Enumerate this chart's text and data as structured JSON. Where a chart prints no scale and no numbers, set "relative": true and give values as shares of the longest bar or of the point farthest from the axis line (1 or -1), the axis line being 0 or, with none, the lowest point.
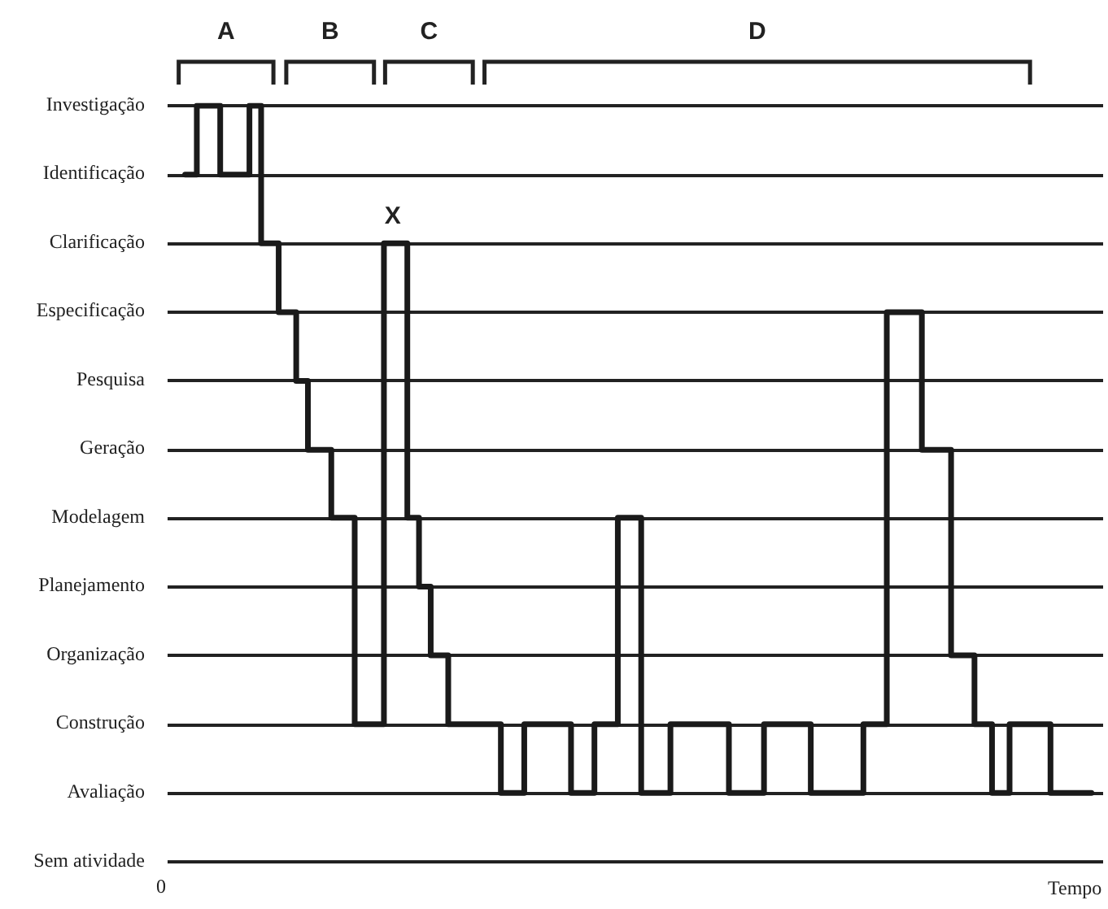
{
  "chart_data": {
    "type": "step",
    "relative": true,
    "xlabel": "Tempo",
    "categories": [
      null,
      null,
      null,
      null,
      null,
      null,
      null,
      null,
      null,
      null,
      null,
      null,
      null,
      null,
      null,
      null,
      null,
      null,
      null,
      null,
      null,
      null,
      null,
      null,
      null,
      null,
      null,
      null,
      null,
      null,
      null,
      null,
      null,
      null,
      null,
      null,
      null,
      null,
      null,
      null,
      null,
      null,
      null,
      null,
      null,
      null,
      null,
      null,
      null,
      null,
      null,
      null,
      null,
      null,
      null,
      null,
      null,
      null,
      null,
      null,
      null,
      null,
      null,
      null,
      null,
      null,
      null,
      null,
      null,
      null,
      null,
      null,
      null,
      null,
      null,
      null,
      null,
      null,
      null,
      null,
      null,
      null,
      null,
      null,
      null,
      null,
      null,
      null,
      null,
      null,
      null,
      null,
      null,
      null,
      null,
      null,
      null,
      null,
      null,
      null,
      null,
      null,
      null,
      null,
      null,
      null,
      null,
      null,
      null,
      null,
      null,
      null,
      null,
      null,
      null,
      null,
      null,
      null,
      null,
      null,
      null,
      null,
      null,
      null,
      null,
      null,
      null,
      null,
      null,
      null,
      null,
      null,
      null,
      null,
      null,
      null,
      null,
      null,
      null,
      null,
      null,
      null,
      null,
      null,
      null,
      null,
      null,
      null,
      null,
      null,
      null,
      null,
      null,
      null,
      null,
      null,
      null,
      null,
      null,
      null,
      null
    ],
    "values": [
      null,
      null,
      null,
      0.909,
      0.909,
      1,
      1,
      1,
      1,
      0.909,
      0.909,
      0.909,
      0.909,
      0.909,
      1,
      1,
      0.818,
      0.818,
      0.818,
      0.727,
      0.727,
      0.727,
      0.636,
      0.636,
      0.545,
      0.545,
      0.545,
      0.545,
      0.455,
      0.455,
      0.455,
      0.455,
      0.182,
      0.182,
      0.182,
      0.182,
      0.182,
      0.818,
      0.818,
      0.818,
      0.818,
      0.455,
      0.455,
      0.364,
      0.364,
      0.273,
      0.273,
      0.273,
      0.182,
      0.182,
      0.182,
      0.182,
      0.182,
      0.182,
      0.182,
      0.182,
      0.182,
      0.091,
      0.091,
      0.091,
      0.091,
      0.182,
      0.182,
      0.182,
      0.182,
      0.182,
      0.182,
      0.182,
      0.182,
      0.091,
      0.091,
      0.091,
      0.091,
      0.182,
      0.182,
      0.182,
      0.182,
      0.455,
      0.455,
      0.455,
      0.455,
      0.091,
      0.091,
      0.091,
      0.091,
      0.091,
      0.182,
      0.182,
      0.182,
      0.182,
      0.182,
      0.182,
      0.182,
      0.182,
      0.182,
      0.182,
      0.091,
      0.091,
      0.091,
      0.091,
      0.091,
      0.091,
      0.182,
      0.182,
      0.182,
      0.182,
      0.182,
      0.182,
      0.182,
      0.182,
      0.091,
      0.091,
      0.091,
      0.091,
      0.091,
      0.091,
      0.091,
      0.091,
      0.091,
      0.182,
      0.182,
      0.182,
      0.182,
      0.727,
      0.727,
      0.727,
      0.727,
      0.727,
      0.727,
      0.545,
      0.545,
      0.545,
      0.545,
      0.545,
      0.273,
      0.273,
      0.273,
      0.273,
      0.182,
      0.182,
      0.182,
      0.091,
      0.091,
      0.091,
      0.182,
      0.182,
      0.182,
      0.182,
      0.182,
      0.182,
      0.182,
      0.091,
      0.091,
      0.091,
      0.091,
      0.091,
      0.091,
      0.091,
      null,
      null,
      null
    ],
    "color": "#1a1a1a",
    "grid": "y",
    "marker": "none",
    "line_style": "solid",
    "annotations": [
      "A",
      "B",
      "C",
      "D",
      "X",
      "0",
      "Sem atividade",
      "Avaliação",
      "Construção",
      "Organização",
      "Planejamento",
      "Modelagem",
      "Geração",
      "Pesquisa",
      "Especificação",
      "Clarificação",
      "Identificação",
      "Investigação"
    ]
  }
}
